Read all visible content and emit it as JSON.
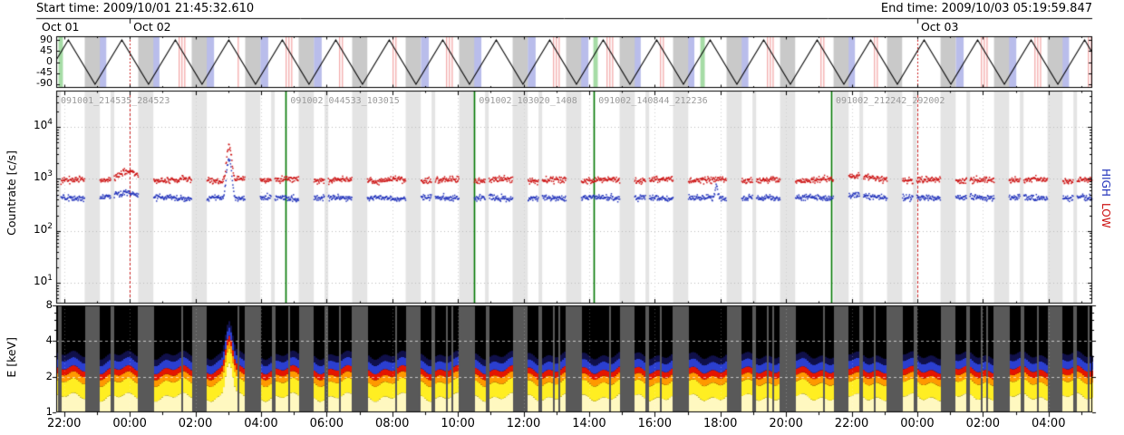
{
  "header": {
    "start": "Start time: 2009/10/01 21:45:32.610",
    "end": "End time: 2009/10/03 05:19:59.847"
  },
  "x_axis": {
    "span_hours": 31.574,
    "first_tick_offset_hours": 0.2409,
    "tick_step_hours": 2,
    "tick_labels": [
      "22:00",
      "00:00",
      "02:00",
      "04:00",
      "06:00",
      "08:00",
      "10:00",
      "12:00",
      "14:00",
      "16:00",
      "18:00",
      "20:00",
      "22:00",
      "00:00",
      "02:00",
      "04:00"
    ],
    "midnights_hours": [
      2.2409,
      26.2409
    ]
  },
  "chart_data": [
    {
      "id": "orbit-track-panel",
      "type": "line",
      "ylim": [
        -105,
        105
      ],
      "yticks": [
        90,
        45,
        0,
        -45,
        -90
      ],
      "wave": {
        "shape": "triangle",
        "min": -90,
        "max": 90,
        "period_hours": 1.63,
        "first_peak_hours": 0.37,
        "color": "#000000"
      },
      "date_labels": [
        {
          "text": "Oct 01",
          "t_hours": 0
        },
        {
          "text": "Oct 02",
          "t_hours": 2.2409
        },
        {
          "text": "Oct 03",
          "t_hours": 26.2409
        }
      ],
      "band_colors": {
        "night_gray": "#c9c9c9",
        "lavender": "#b9bdeb",
        "green": "#a6dca6",
        "saa_red": "#f4a9a9"
      },
      "orbital_bands": {
        "night_phase": [
          0.5,
          0.96
        ],
        "saa_phase": [
          -0.34,
          -0.23
        ],
        "lavender_phase": [
          -0.74,
          -0.5
        ],
        "red_stripe_start_phase": 0.1,
        "red_stripe_width": 0.035,
        "green_phase": [
          -0.3,
          -0.165
        ],
        "seed": 20091001
      }
    },
    {
      "id": "countrate-panel",
      "type": "scatter",
      "ylabel": "Countrate [c/s]",
      "yscale": "log",
      "ylim": [
        4,
        50000
      ],
      "yticks": [
        10,
        100,
        1000,
        10000
      ],
      "series": [
        {
          "name": "HIGH",
          "color": "#2233bb",
          "baseline_cps": 430
        },
        {
          "name": "LOW",
          "color": "#cc1111",
          "baseline_cps": 950
        }
      ],
      "right_labels": [
        {
          "text": "HIGH",
          "color": "#2233bb"
        },
        {
          "text": "LOW",
          "color": "#cc1111"
        }
      ],
      "events": [
        {
          "kind": "bump",
          "t_hours": 2.2,
          "sigma_hours": 0.3,
          "low_factor": 1.38,
          "high_factor": 1.28
        },
        {
          "kind": "flare",
          "t_hours": 5.27,
          "sigma_hours": 0.06,
          "low_factor": 4.3,
          "high_factor": 5.6
        },
        {
          "kind": "spike",
          "t_hours": 20.12,
          "sigma_hours": 0.035,
          "low_factor": 1.0,
          "high_factor": 1.7
        },
        {
          "kind": "bump",
          "t_hours": 24.35,
          "sigma_hours": 0.35,
          "low_factor": 1.22,
          "high_factor": 1.12
        }
      ],
      "interval_labels": [
        {
          "text": "091001_214535_284523",
          "t_hours": 0.0
        },
        {
          "text": "091002_044533_103015",
          "t_hours": 7.0002
        },
        {
          "text": "091002_103020_1408",
          "t_hours": 12.7466
        },
        {
          "text": "091002_140844_212236",
          "t_hours": 16.3866
        },
        {
          "text": "091002_212242_292002",
          "t_hours": 23.6193
        }
      ],
      "divider_lines": {
        "color": "#007700",
        "t_hours": [
          7.0002,
          12.7466,
          16.3866,
          23.6193
        ]
      },
      "midnight_line_style": {
        "color": "#cc2222",
        "dash": true
      }
    },
    {
      "id": "spectrogram-panel",
      "type": "heatmap",
      "ylabel": "E [keV]",
      "yscale": "log",
      "ylim": [
        1,
        8
      ],
      "yticks": [
        8,
        4,
        2,
        1
      ],
      "gridlines_kev": [
        2,
        4
      ],
      "colorstops": [
        {
          "e": 1.35,
          "color": "#fff8c0"
        },
        {
          "e": 1.8,
          "color": "#ffee22"
        },
        {
          "e": 2.05,
          "color": "#ff9900"
        },
        {
          "e": 2.3,
          "color": "#e51500"
        },
        {
          "e": 2.7,
          "color": "#2b3fd0"
        },
        {
          "e": 3.05,
          "color": "#10104a"
        }
      ],
      "gap_color": "#595959",
      "flare": {
        "t_hours": 5.27,
        "sigma_hours": 0.09,
        "boost": 0.95
      }
    }
  ]
}
